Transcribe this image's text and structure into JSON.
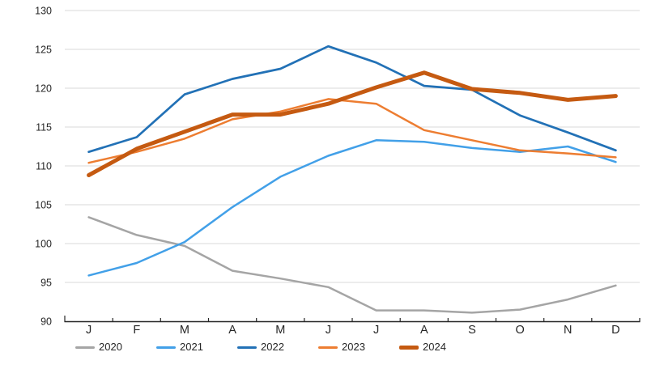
{
  "page": {
    "background_color": "#FFFFFF"
  },
  "chart_data": {
    "type": "line",
    "title": "",
    "xlabel": "",
    "ylabel": "",
    "categories": [
      "J",
      "F",
      "M",
      "A",
      "M",
      "J",
      "J",
      "A",
      "S",
      "O",
      "N",
      "D"
    ],
    "series": [
      {
        "name": "2020",
        "color": "#A5A5A5",
        "stroke_width": 2.5,
        "values": [
          103.4,
          101.1,
          99.7,
          96.5,
          95.5,
          94.4,
          91.4,
          91.4,
          91.1,
          91.5,
          92.8,
          94.6
        ]
      },
      {
        "name": "2021",
        "color": "#42A0E8",
        "stroke_width": 2.5,
        "values": [
          95.9,
          97.5,
          100.2,
          104.7,
          108.6,
          111.3,
          113.3,
          113.1,
          112.3,
          111.8,
          112.5,
          110.5
        ]
      },
      {
        "name": "2022",
        "color": "#2271B6",
        "stroke_width": 2.7,
        "values": [
          111.8,
          113.7,
          119.2,
          121.2,
          122.5,
          125.4,
          123.3,
          120.3,
          119.8,
          116.5,
          114.3,
          112.0
        ]
      },
      {
        "name": "2023",
        "color": "#ED7D31",
        "stroke_width": 2.5,
        "values": [
          110.4,
          111.8,
          113.5,
          116.0,
          117.0,
          118.6,
          118.0,
          114.6,
          113.3,
          112.0,
          111.6,
          111.1
        ]
      },
      {
        "name": "2024",
        "color": "#C55A11",
        "stroke_width": 5,
        "values": [
          108.8,
          112.2,
          114.4,
          116.6,
          116.6,
          118.0,
          120.1,
          122.0,
          119.9,
          119.4,
          118.5,
          119.0
        ]
      }
    ],
    "y_axis": {
      "min": 90,
      "max": 130,
      "step": 5,
      "ticks": [
        90,
        95,
        100,
        105,
        110,
        115,
        120,
        125,
        130
      ]
    },
    "x_axis": {
      "boundary_tick_count": 13
    },
    "legend": {
      "position": "bottom"
    },
    "grid": {
      "horizontal": true,
      "color": "#D9D9D9"
    },
    "axis_color": "#262626",
    "label_color": "#262626"
  }
}
